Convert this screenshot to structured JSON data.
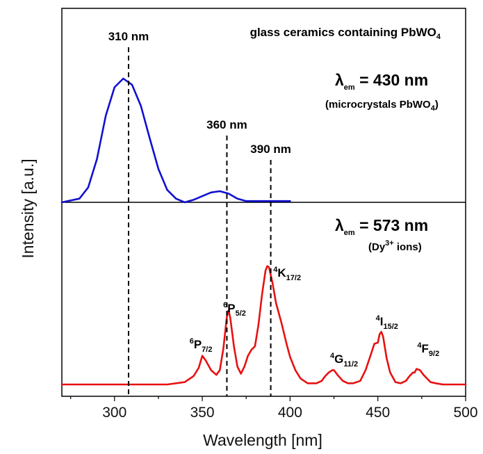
{
  "chart_data": {
    "type": "line",
    "x_label": "Wavelength [nm]",
    "y_label": "Intensity [a.u.]",
    "xlim": [
      270,
      500
    ],
    "x_ticks": [
      "300",
      "350",
      "400",
      "450",
      "500"
    ],
    "grid": false,
    "panels": [
      {
        "name": "top",
        "title_main": "glass ceramics containing PbWO",
        "title_sub": "4",
        "em_label_prefix": "λ",
        "em_label_sub": "em",
        "em_label_value": " = 430 nm",
        "em_note_main": "(microcrystals PbWO",
        "em_note_sub": "4",
        "em_note_end": ")",
        "color": "#1010d0",
        "series": {
          "x": [
            270,
            280,
            285,
            290,
            295,
            300,
            305,
            310,
            315,
            320,
            325,
            330,
            335,
            340,
            345,
            350,
            355,
            360,
            365,
            370,
            375,
            380,
            390,
            400
          ],
          "y": [
            0.0,
            0.03,
            0.12,
            0.35,
            0.7,
            0.93,
            1.0,
            0.95,
            0.78,
            0.52,
            0.27,
            0.1,
            0.03,
            0.0,
            0.02,
            0.05,
            0.08,
            0.09,
            0.07,
            0.03,
            0.01,
            0.01,
            0.01,
            0.01
          ]
        },
        "markers": [
          {
            "x": 308,
            "label": "310 nm"
          },
          {
            "x": 364,
            "label": "360 nm"
          },
          {
            "x": 389,
            "label": "390 nm"
          }
        ]
      },
      {
        "name": "bottom",
        "em_label_prefix": "λ",
        "em_label_sub": "em",
        "em_label_value": " = 573 nm",
        "em_note_main": "(Dy",
        "em_note_sup": "3+",
        "em_note_end": " ions)",
        "color": "#e81010",
        "series": {
          "x": [
            270,
            330,
            340,
            345,
            348,
            350,
            352,
            355,
            358,
            360,
            362,
            364,
            365,
            366,
            368,
            370,
            372,
            374,
            376,
            378,
            380,
            382,
            384,
            386,
            387,
            388,
            390,
            392,
            395,
            398,
            400,
            403,
            406,
            410,
            415,
            418,
            420,
            422,
            424,
            425,
            427,
            430,
            433,
            436,
            440,
            443,
            446,
            448,
            450,
            451,
            452,
            453,
            455,
            457,
            460,
            463,
            466,
            468,
            470,
            471,
            472,
            474,
            476,
            478,
            480,
            483,
            487,
            500
          ],
          "y": [
            0.0,
            0.0,
            0.02,
            0.07,
            0.14,
            0.24,
            0.2,
            0.12,
            0.08,
            0.12,
            0.3,
            0.57,
            0.62,
            0.55,
            0.32,
            0.15,
            0.09,
            0.15,
            0.24,
            0.29,
            0.32,
            0.5,
            0.75,
            0.95,
            0.99,
            0.98,
            0.85,
            0.68,
            0.52,
            0.34,
            0.23,
            0.12,
            0.05,
            0.01,
            0.01,
            0.03,
            0.07,
            0.1,
            0.12,
            0.12,
            0.08,
            0.03,
            0.01,
            0.01,
            0.03,
            0.12,
            0.25,
            0.34,
            0.35,
            0.42,
            0.44,
            0.4,
            0.22,
            0.1,
            0.02,
            0.01,
            0.03,
            0.07,
            0.1,
            0.1,
            0.13,
            0.12,
            0.08,
            0.05,
            0.02,
            0.01,
            0.0,
            0.0
          ]
        },
        "peak_labels": [
          {
            "x": 350,
            "sup": "6",
            "main": "P",
            "sub": "7/2"
          },
          {
            "x": 366,
            "sup": "6",
            "main": "P",
            "sub": "5/2"
          },
          {
            "x": 392,
            "sup": "4",
            "main": "K",
            "sub": "17/2"
          },
          {
            "x": 426,
            "sup": "4",
            "main": "G",
            "sub": "11/2"
          },
          {
            "x": 452,
            "sup": "4",
            "main": "I",
            "sub": "15/2"
          },
          {
            "x": 474,
            "sup": "4",
            "main": "F",
            "sub": "9/2"
          }
        ]
      }
    ]
  }
}
